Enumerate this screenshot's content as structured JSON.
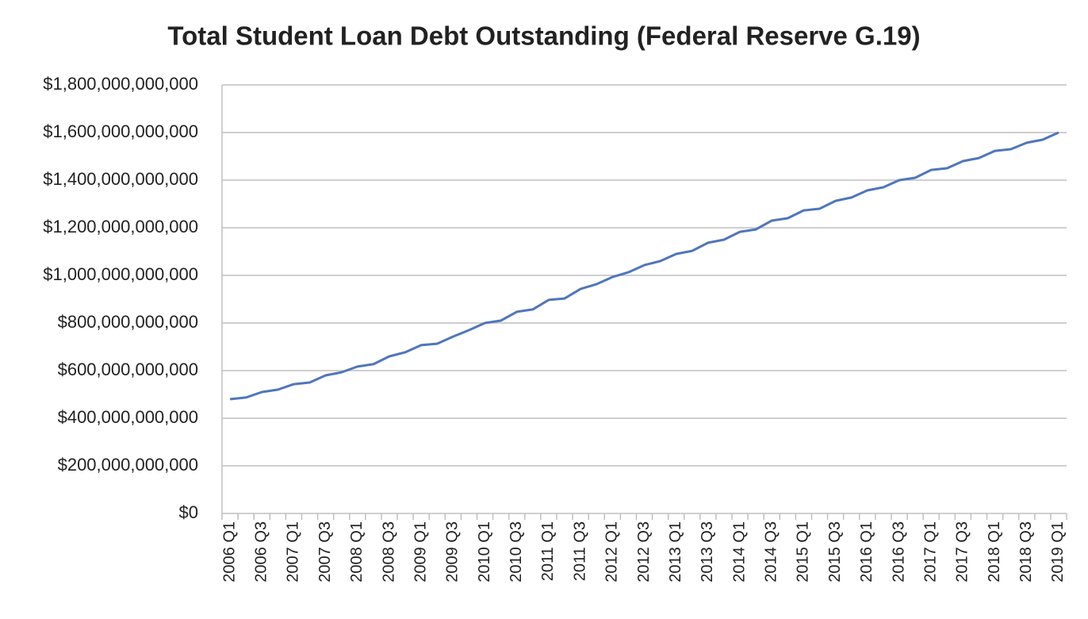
{
  "chart_data": {
    "type": "line",
    "title": "Total Student Loan Debt Outstanding (Federal Reserve G.19)",
    "categories": [
      "2006 Q1",
      null,
      "2006 Q3",
      null,
      "2007 Q1",
      null,
      "2007 Q3",
      null,
      "2008 Q1",
      null,
      "2008 Q3",
      null,
      "2009 Q1",
      null,
      "2009 Q3",
      null,
      "2010 Q1",
      null,
      "2010 Q3",
      null,
      "2011 Q1",
      null,
      "2011 Q3",
      null,
      "2012 Q1",
      null,
      "2012 Q3",
      null,
      "2013 Q1",
      null,
      "2013 Q3",
      null,
      "2014 Q1",
      null,
      "2014 Q3",
      null,
      "2015 Q1",
      null,
      "2015 Q3",
      null,
      "2016 Q1",
      null,
      "2016 Q3",
      null,
      "2017 Q1",
      null,
      "2017 Q3",
      null,
      "2018 Q1",
      null,
      "2018 Q3",
      null,
      "2019 Q1"
    ],
    "values": [
      480000000000,
      487000000000,
      510000000000,
      520000000000,
      543000000000,
      550000000000,
      580000000000,
      593000000000,
      617000000000,
      627000000000,
      660000000000,
      677000000000,
      707000000000,
      713000000000,
      743000000000,
      770000000000,
      800000000000,
      810000000000,
      847000000000,
      857000000000,
      897000000000,
      903000000000,
      943000000000,
      963000000000,
      993000000000,
      1013000000000,
      1043000000000,
      1060000000000,
      1090000000000,
      1103000000000,
      1137000000000,
      1150000000000,
      1183000000000,
      1193000000000,
      1230000000000,
      1240000000000,
      1273000000000,
      1280000000000,
      1313000000000,
      1327000000000,
      1357000000000,
      1370000000000,
      1400000000000,
      1410000000000,
      1443000000000,
      1450000000000,
      1480000000000,
      1493000000000,
      1523000000000,
      1530000000000,
      1557000000000,
      1570000000000,
      1600000000000
    ],
    "color": "#4f76bd",
    "ylim": [
      0,
      1800000000000
    ],
    "yticks": [
      {
        "value": 0,
        "label": "$0"
      },
      {
        "value": 200000000000,
        "label": "$200,000,000,000"
      },
      {
        "value": 400000000000,
        "label": "$400,000,000,000"
      },
      {
        "value": 600000000000,
        "label": "$600,000,000,000"
      },
      {
        "value": 800000000000,
        "label": "$800,000,000,000"
      },
      {
        "value": 1000000000000,
        "label": "$1,000,000,000,000"
      },
      {
        "value": 1200000000000,
        "label": "$1,200,000,000,000"
      },
      {
        "value": 1400000000000,
        "label": "$1,400,000,000,000"
      },
      {
        "value": 1600000000000,
        "label": "$1,600,000,000,000"
      },
      {
        "value": 1800000000000,
        "label": "$1,800,000,000,000"
      }
    ],
    "grid": true
  }
}
